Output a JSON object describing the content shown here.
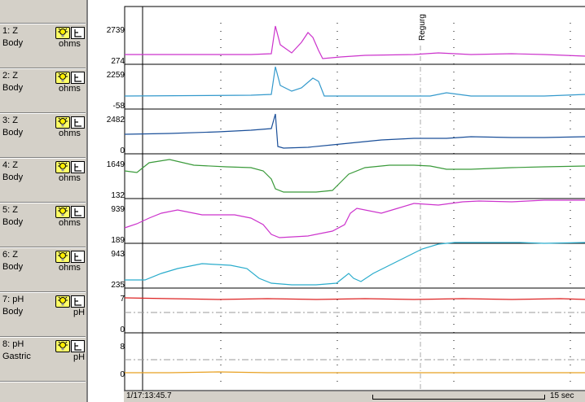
{
  "channels": [
    {
      "id": 1,
      "name": "1: Z",
      "site": "Body",
      "unit": "ohms",
      "scale_max": "2739",
      "scale_min": "274",
      "color": "#cc33cc"
    },
    {
      "id": 2,
      "name": "2: Z",
      "site": "Body",
      "unit": "ohms",
      "scale_max": "2259",
      "scale_min": "-58",
      "color": "#3399cc"
    },
    {
      "id": 3,
      "name": "3: Z",
      "site": "Body",
      "unit": "ohms",
      "scale_max": "2482",
      "scale_min": "0",
      "color": "#1a4f99"
    },
    {
      "id": 4,
      "name": "4: Z",
      "site": "Body",
      "unit": "ohms",
      "scale_max": "1649",
      "scale_min": "132",
      "color": "#3a9a3a"
    },
    {
      "id": 5,
      "name": "5: Z",
      "site": "Body",
      "unit": "ohms",
      "scale_max": "939",
      "scale_min": "189",
      "color": "#cc33cc"
    },
    {
      "id": 6,
      "name": "6: Z",
      "site": "Body",
      "unit": "ohms",
      "scale_max": "943",
      "scale_min": "235",
      "color": "#2aaccc"
    },
    {
      "id": 7,
      "name": "7: pH",
      "site": "Body",
      "unit": "pH",
      "scale_max": "7",
      "scale_min": "0",
      "color": "#dd2222"
    },
    {
      "id": 8,
      "name": "8: pH",
      "site": "Gastric",
      "unit": "pH",
      "scale_max": "8",
      "scale_min": "0",
      "color": "#e8a020"
    }
  ],
  "event_marker": {
    "label": "Regurg"
  },
  "timestamp": "1/17:13:45.7",
  "time_scale": "15 sec",
  "icons": {
    "bulb": "lightbulb-icon",
    "tool": "scale-tool-icon"
  }
}
